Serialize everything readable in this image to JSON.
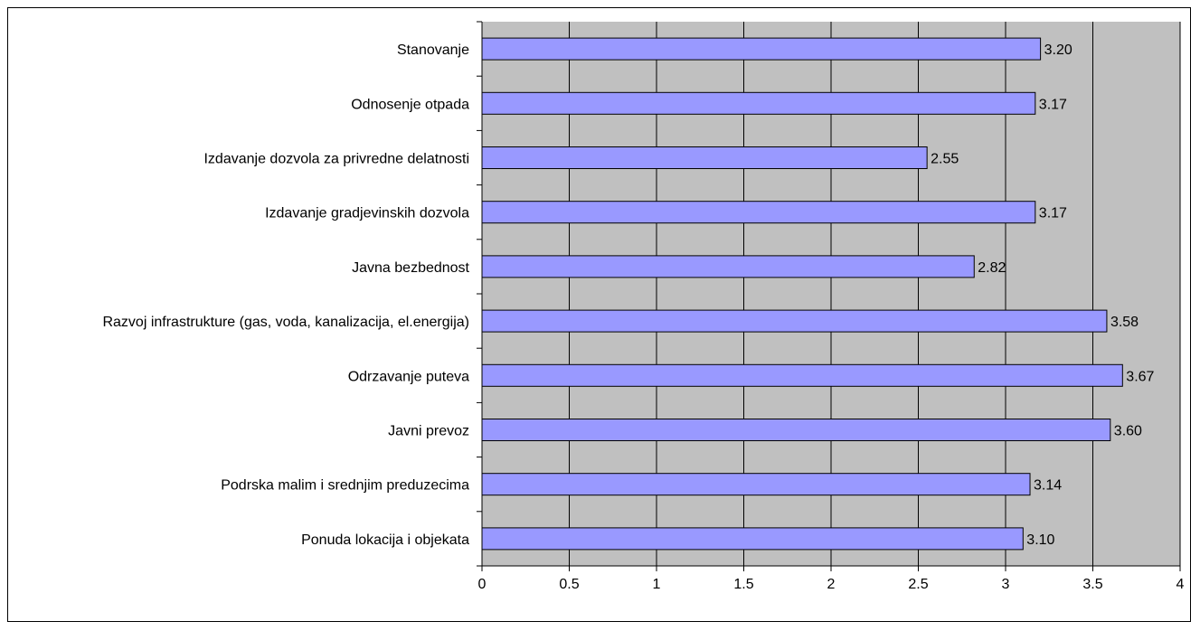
{
  "chart_data": {
    "type": "bar",
    "orientation": "horizontal",
    "categories": [
      "Stanovanje",
      "Odnosenje otpada",
      "Izdavanje dozvola za privredne delatnosti",
      "Izdavanje gradjevinskih dozvola",
      "Javna bezbednost",
      "Razvoj infrastrukture (gas, voda, kanalizacija, el.energija)",
      "Odrzavanje puteva",
      "Javni prevoz",
      "Podrska malim i srednjim preduzecima",
      "Ponuda lokacija i objekata"
    ],
    "values": [
      3.2,
      3.17,
      2.55,
      3.17,
      2.82,
      3.58,
      3.67,
      3.6,
      3.14,
      3.1
    ],
    "data_labels": [
      "3.20",
      "3.17",
      "2.55",
      "3.17",
      "2.82",
      "3.58",
      "3.67",
      "3.60",
      "3.14",
      "3.10"
    ],
    "xlim": [
      0,
      4
    ],
    "xticks": [
      "0",
      "0.5",
      "1",
      "1.5",
      "2",
      "2.5",
      "3",
      "3.5",
      "4"
    ],
    "title": "",
    "xlabel": "",
    "ylabel": "",
    "grid": "vertical",
    "colors": {
      "bar_fill": "#9999ff",
      "bar_stroke": "#000000",
      "plot_bg": "#c0c0c0",
      "grid": "#000000"
    }
  }
}
